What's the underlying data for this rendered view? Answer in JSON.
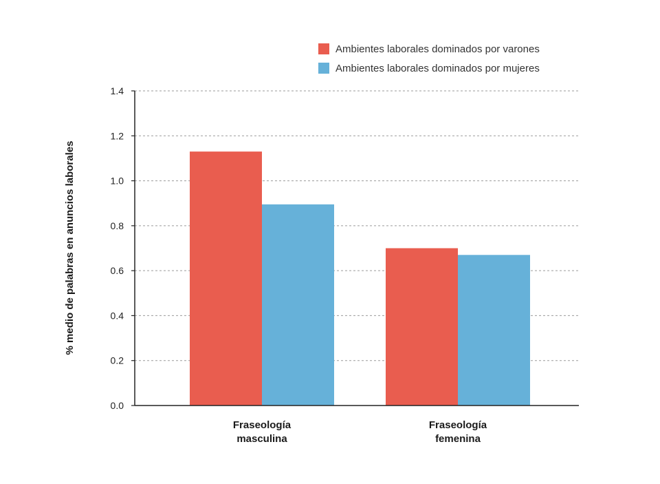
{
  "chart_data": {
    "type": "bar",
    "categories": [
      [
        "Fraseología",
        "masculina"
      ],
      [
        "Fraseología",
        "femenina"
      ]
    ],
    "series": [
      {
        "name": "Ambientes laborales dominados por varones",
        "values": [
          1.13,
          0.7
        ],
        "color": "#e95d4f"
      },
      {
        "name": "Ambientes laborales dominados por mujeres",
        "values": [
          0.895,
          0.67
        ],
        "color": "#66b1d9"
      }
    ],
    "ylabel": "% medio de palabras en anuncios laborales",
    "xlabel": "",
    "ylim": [
      0,
      1.4
    ],
    "yticks": [
      "0.0",
      "0.2",
      "0.4",
      "0.6",
      "0.8",
      "1.0",
      "1.2",
      "1.4"
    ],
    "grid": true,
    "legend_position": "top-right"
  }
}
